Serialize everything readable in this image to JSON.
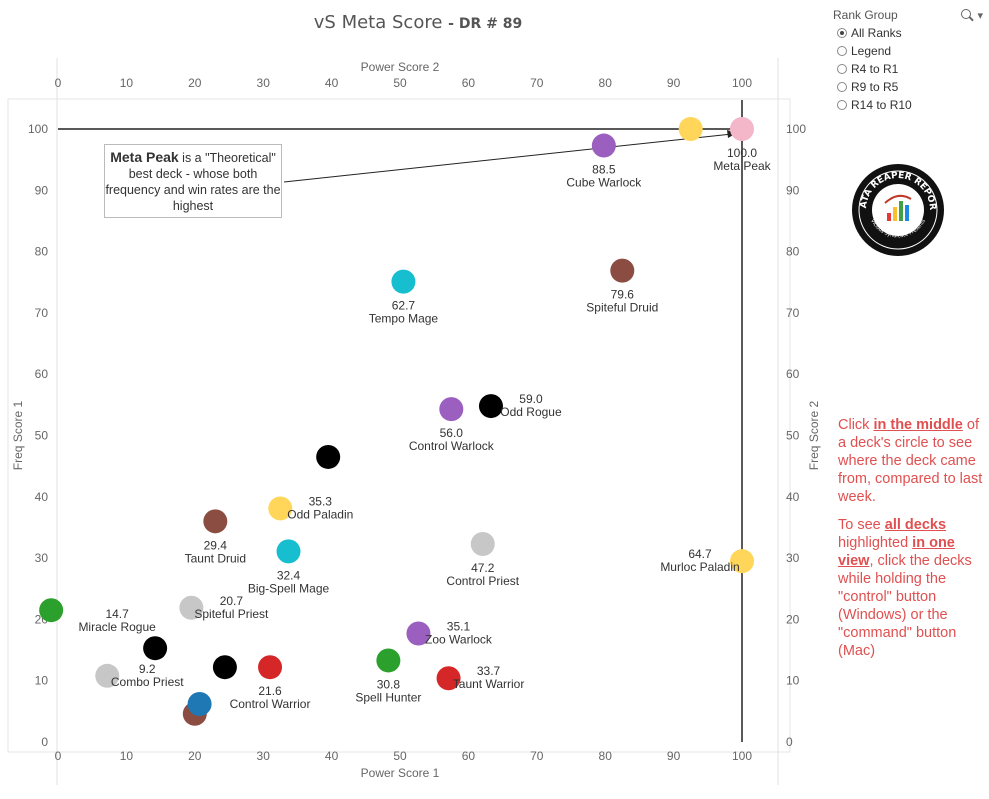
{
  "title": {
    "main": "vS Meta Score",
    "sub": "DR # 89"
  },
  "chart_data": {
    "type": "scatter",
    "xlabel_top": "Power Score 2",
    "xlabel_bottom": "Power Score 1",
    "ylabel_left": "Freq Score 1",
    "ylabel_right": "Freq Score 2",
    "xlim": [
      0,
      100
    ],
    "ylim": [
      0,
      100
    ],
    "x_ticks": [
      0,
      10,
      20,
      30,
      40,
      50,
      60,
      70,
      80,
      90,
      100
    ],
    "y_ticks": [
      0,
      10,
      20,
      30,
      40,
      50,
      60,
      70,
      80,
      90,
      100
    ],
    "reference_lines": {
      "x": 100,
      "y": 100
    },
    "points": [
      {
        "x": 100,
        "y": 100,
        "color": "#f4b6c9",
        "value": "100.0",
        "name": "Meta Peak",
        "label_pos": "below"
      },
      {
        "x": 92.5,
        "y": 100,
        "color": "#ffd55a",
        "value": "",
        "name": "",
        "label_pos": "none"
      },
      {
        "x": 79.8,
        "y": 97.3,
        "color": "#9b5fc0",
        "value": "88.5",
        "name": "Cube Warlock",
        "label_pos": "below"
      },
      {
        "x": 82.5,
        "y": 76.9,
        "color": "#8b4c42",
        "value": "79.6",
        "name": "Spiteful Druid",
        "label_pos": "below"
      },
      {
        "x": 50.5,
        "y": 75.1,
        "color": "#17becf",
        "value": "62.7",
        "name": "Tempo Mage",
        "label_pos": "below"
      },
      {
        "x": 63.3,
        "y": 54.8,
        "color": "#000000",
        "value": "59.0",
        "name": "Odd Rogue",
        "label_pos": "right"
      },
      {
        "x": 57.5,
        "y": 54.3,
        "color": "#9b5fc0",
        "value": "56.0",
        "name": "Control Warlock",
        "label_pos": "below"
      },
      {
        "x": 39.5,
        "y": 46.5,
        "color": "#000000",
        "value": "",
        "name": "",
        "label_pos": "none"
      },
      {
        "x": 32.5,
        "y": 38.1,
        "color": "#ffd55a",
        "value": "35.3",
        "name": "Odd Paladin",
        "label_pos": "right"
      },
      {
        "x": 23,
        "y": 36,
        "color": "#8b4c42",
        "value": "29.4",
        "name": "Taunt Druid",
        "label_pos": "below"
      },
      {
        "x": 33.7,
        "y": 31.1,
        "color": "#17becf",
        "value": "32.4",
        "name": "Big-Spell Mage",
        "label_pos": "below"
      },
      {
        "x": 62.1,
        "y": 32.3,
        "color": "#c7c7c7",
        "value": "47.2",
        "name": "Control Priest",
        "label_pos": "below"
      },
      {
        "x": 100,
        "y": 29.5,
        "color": "#ffd55a",
        "value": "64.7",
        "name": "Murloc Paladin",
        "label_pos": "left"
      },
      {
        "x": 19.5,
        "y": 21.9,
        "color": "#c7c7c7",
        "value": "20.7",
        "name": "Spiteful Priest",
        "label_pos": "right"
      },
      {
        "x": -1,
        "y": 21.5,
        "color": "#2ca02c",
        "value": "",
        "name": "",
        "label_pos": "none"
      },
      {
        "x": 14.2,
        "y": 15.3,
        "color": "#000000",
        "value": "14.7",
        "name": "Miracle Rogue",
        "label_pos": "upleft"
      },
      {
        "x": 7.2,
        "y": 10.8,
        "color": "#c7c7c7",
        "value": "9.2",
        "name": "Combo Priest",
        "label_pos": "right"
      },
      {
        "x": 24.4,
        "y": 12.2,
        "color": "#000000",
        "value": "",
        "name": "",
        "label_pos": "none"
      },
      {
        "x": 31,
        "y": 12.2,
        "color": "#d62728",
        "value": "21.6",
        "name": "Control Warrior",
        "label_pos": "below"
      },
      {
        "x": 48.3,
        "y": 13.3,
        "color": "#2ca02c",
        "value": "30.8",
        "name": "Spell Hunter",
        "label_pos": "below"
      },
      {
        "x": 52.7,
        "y": 17.7,
        "color": "#9b5fc0",
        "value": "35.1",
        "name": "Zoo Warlock",
        "label_pos": "right"
      },
      {
        "x": 57.1,
        "y": 10.4,
        "color": "#d62728",
        "value": "33.7",
        "name": "Taunt Warrior",
        "label_pos": "right"
      },
      {
        "x": 20,
        "y": 4.6,
        "color": "#8b4c42",
        "value": "",
        "name": "",
        "label_pos": "none"
      },
      {
        "x": 20.7,
        "y": 6.2,
        "color": "#1f77b4",
        "value": "",
        "name": "",
        "label_pos": "none"
      }
    ]
  },
  "callout": {
    "bold": "Meta Peak",
    "rest": " is a \"Theoretical\" best deck - whose both frequency and win rates are the highest"
  },
  "filter": {
    "title": "Rank Group",
    "selected": "All Ranks",
    "options": [
      "All Ranks",
      "Legend",
      "R4 to R1",
      "R9 to R5",
      "R14 to R10"
    ]
  },
  "logo": {
    "text_top": "DATA REAPER REPORT",
    "text_bottom": "Vicious Syndicate Presents"
  },
  "instructions": {
    "p1_a": "Click ",
    "p1_em": "in the middle",
    "p1_b": " of a deck's circle to see where the deck came from, compared to last week.",
    "p2_a": "To see ",
    "p2_em1": "all decks",
    "p2_b": " highlighted ",
    "p2_em2": "in one view",
    "p2_c": ", click the decks while holding the \"control\" button (Windows) or the \"command\" button (Mac)"
  }
}
